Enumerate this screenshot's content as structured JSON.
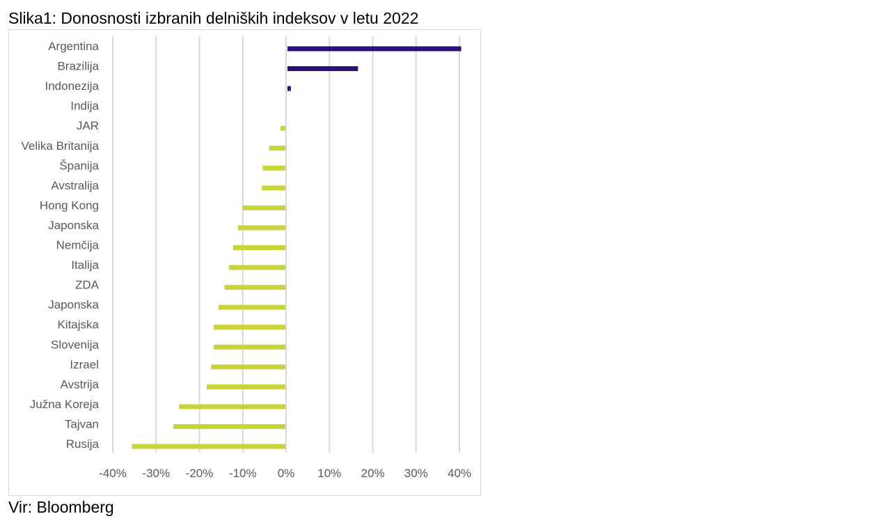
{
  "figure": {
    "title": "Slika1: Donosnosti izbranih delniških indeksov v letu 2022",
    "source": "Vir: Bloomberg"
  },
  "colors": {
    "positive": "#2e0f7a",
    "negative": "#c9d43a",
    "gridline": "#d9d9d9",
    "text": "#595959"
  },
  "chart_data": {
    "type": "bar",
    "orientation": "horizontal",
    "title": "",
    "xlabel": "",
    "ylabel": "",
    "xlim": [
      -0.4,
      0.4
    ],
    "xticks": [
      -0.4,
      -0.3,
      -0.2,
      -0.1,
      0,
      0.1,
      0.2,
      0.3,
      0.4
    ],
    "xtick_labels": [
      "-40%",
      "-30%",
      "-20%",
      "-10%",
      "0%",
      "10%",
      "20%",
      "30%",
      "40%"
    ],
    "grid": true,
    "legend": "none",
    "categories": [
      "Argentina",
      "Brazilija",
      "Indonezija",
      "Indija",
      "JAR",
      "Velika Britanija",
      "Španija",
      "Avstralija",
      "Hong Kong",
      "Japonska",
      "Nemčija",
      "Italija",
      "ZDA",
      "Japonska",
      "Kitajska",
      "Slovenija",
      "Izrael",
      "Avstrija",
      "Južna Koreja",
      "Tajvan",
      "Rusija"
    ],
    "values": [
      0.404,
      0.166,
      0.011,
      0.0,
      -0.013,
      -0.039,
      -0.054,
      -0.056,
      -0.1,
      -0.111,
      -0.122,
      -0.132,
      -0.142,
      -0.156,
      -0.167,
      -0.167,
      -0.173,
      -0.183,
      -0.247,
      -0.26,
      -0.356
    ]
  }
}
